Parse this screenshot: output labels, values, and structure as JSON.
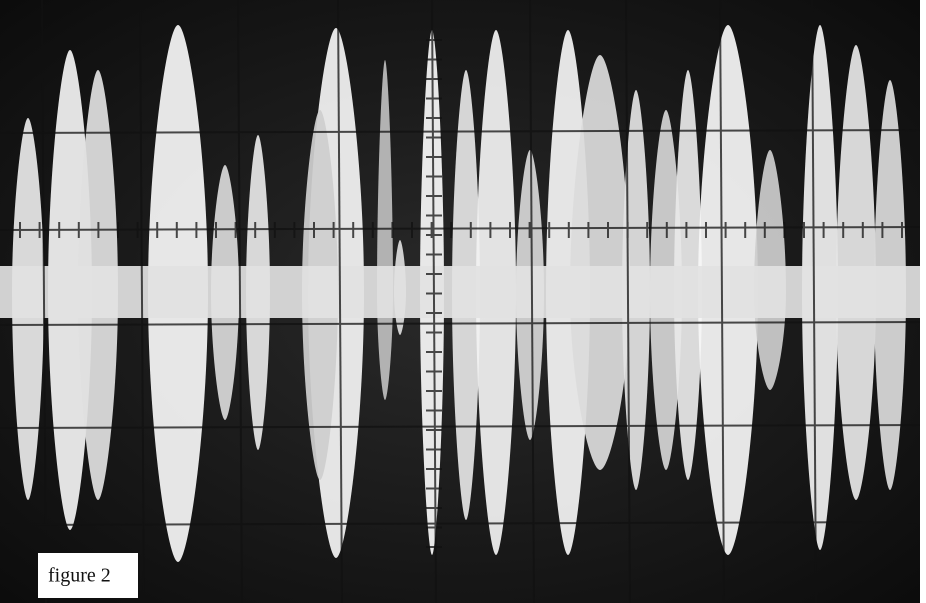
{
  "figure": {
    "caption": "figure 2"
  }
}
